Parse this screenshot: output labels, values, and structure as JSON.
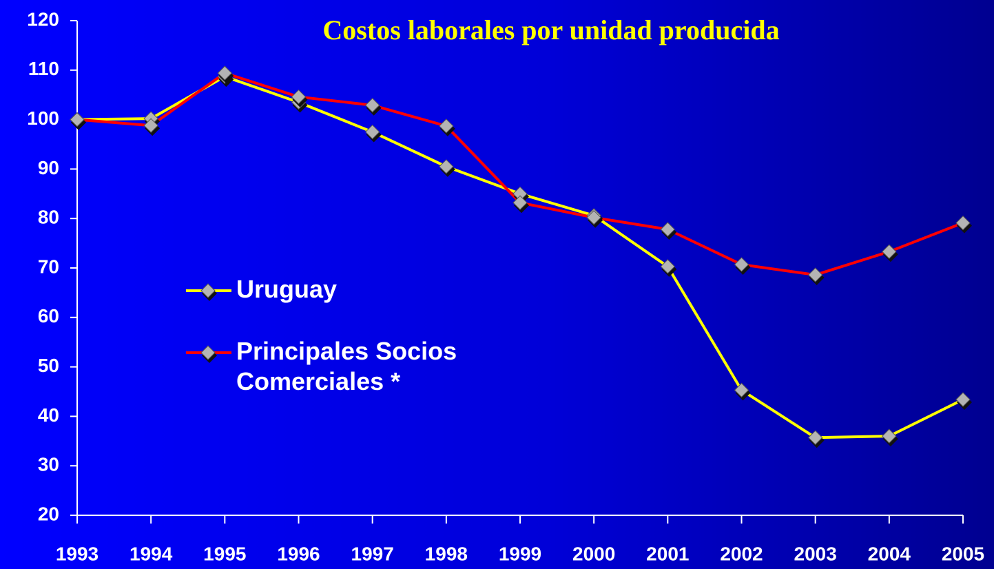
{
  "chart_data": {
    "type": "line",
    "title": "Costos laborales por unidad producida",
    "categories": [
      "1993",
      "1994",
      "1995",
      "1996",
      "1997",
      "1998",
      "1999",
      "2000",
      "2001",
      "2002",
      "2003",
      "2004",
      "2005"
    ],
    "series": [
      {
        "name": "Uruguay",
        "color": "#ffff00",
        "values": [
          100,
          100.2,
          108.7,
          103.5,
          97.5,
          90.5,
          85,
          80.6,
          70.3,
          45.3,
          35.7,
          36,
          43.4
        ]
      },
      {
        "name": "Principales Socios Comerciales *",
        "color": "#ff0000",
        "values": [
          100,
          98.8,
          109.4,
          104.6,
          102.9,
          98.7,
          83.2,
          80.2,
          77.8,
          70.7,
          68.6,
          73.3,
          79.1
        ]
      }
    ],
    "ylim": [
      20,
      120
    ],
    "yticks": [
      20,
      30,
      40,
      50,
      60,
      70,
      80,
      90,
      100,
      110,
      120
    ],
    "grid": false,
    "legend": "center-left"
  }
}
